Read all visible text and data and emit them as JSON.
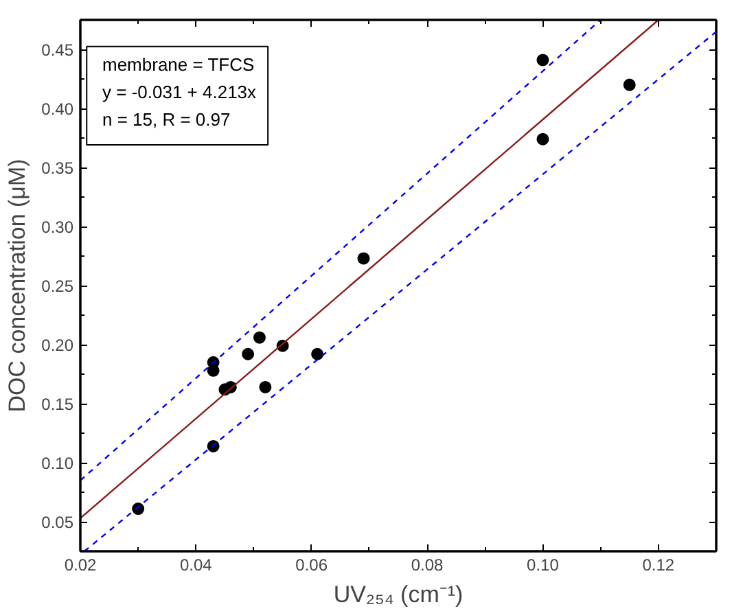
{
  "chart_data": {
    "type": "scatter",
    "xlabel": "UV₂₅₄ (cm⁻¹)",
    "ylabel": "DOC concentration (μM)",
    "annotations": [
      "membrane = TFCS",
      "y = -0.031 + 4.213x",
      "n = 15, R = 0.97"
    ],
    "xlim": [
      0.02,
      0.13
    ],
    "ylim": [
      0.025,
      0.475
    ],
    "xticks": [
      0.02,
      0.04,
      0.06,
      0.08,
      {
        "value": 0.1,
        "label": "0.10"
      },
      0.12
    ],
    "yticks": [
      0.05,
      {
        "value": 0.1,
        "label": "0.10"
      },
      0.15,
      {
        "value": 0.2,
        "label": "0.20"
      },
      0.25,
      {
        "value": 0.3,
        "label": "0.30"
      },
      0.35,
      {
        "value": 0.4,
        "label": "0.40"
      },
      0.45
    ],
    "grid": false,
    "series": [
      {
        "marker": "circle",
        "color": "#000000",
        "x": [
          0.03,
          0.043,
          0.043,
          0.045,
          0.046,
          0.043,
          0.049,
          0.051,
          0.055,
          0.052,
          0.061,
          0.069,
          0.1,
          0.1,
          0.115
        ],
        "values": [
          0.061,
          0.185,
          0.178,
          0.162,
          0.164,
          0.114,
          0.192,
          0.206,
          0.199,
          0.164,
          0.192,
          0.273,
          0.441,
          0.374,
          0.42
        ]
      },
      {
        "type": "line",
        "color": "#8b1a1a",
        "line_style": "solid",
        "x": [
          0.02,
          0.12
        ],
        "values": [
          0.053,
          0.475
        ]
      },
      {
        "type": "line",
        "color": "#0000ff",
        "line_style": "dashed",
        "x": [
          0.02,
          0.11
        ],
        "values": [
          0.085,
          0.475
        ]
      },
      {
        "type": "line",
        "color": "#0000ff",
        "line_style": "dashed",
        "x": [
          0.0207,
          0.13
        ],
        "values": [
          0.025,
          0.465
        ]
      }
    ]
  }
}
